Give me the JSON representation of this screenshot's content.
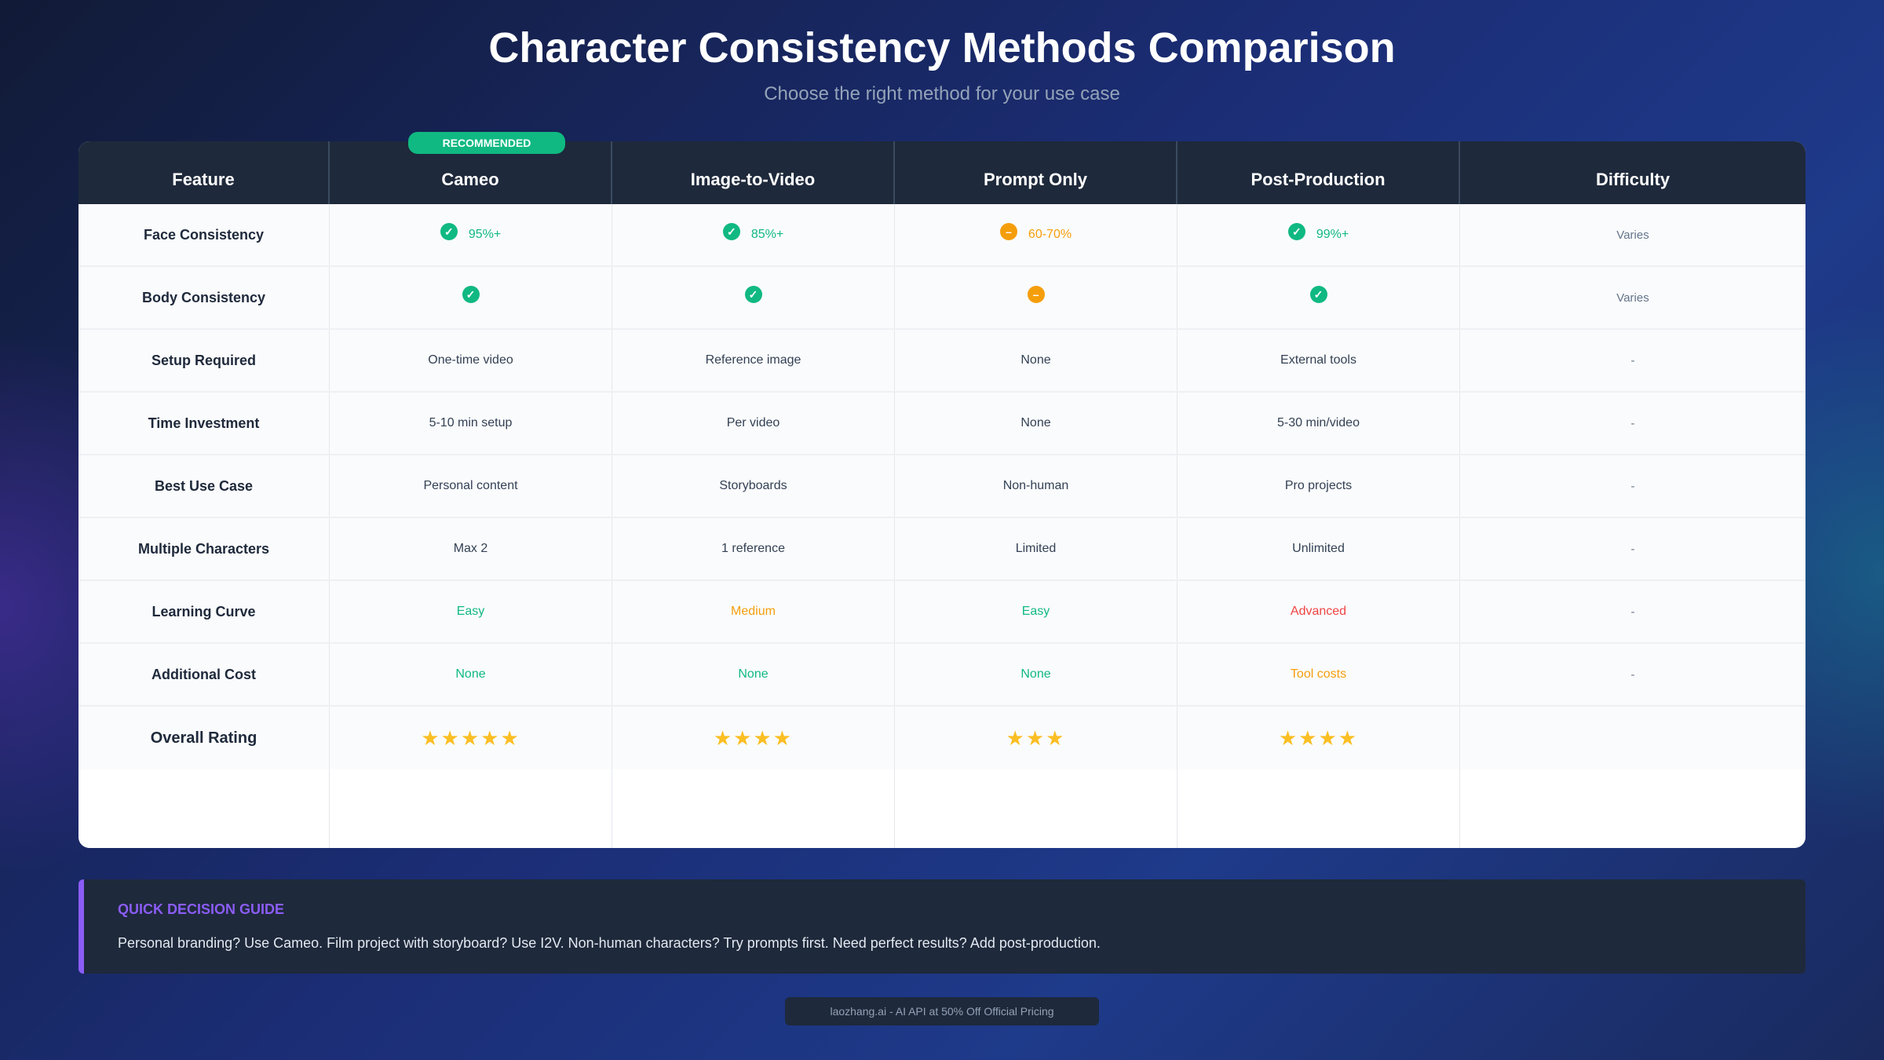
{
  "title": "Character Consistency Methods Comparison",
  "subtitle": "Choose the right method for your use case",
  "badge": "RECOMMENDED",
  "headers": [
    "Feature",
    "Cameo",
    "Image-to-Video",
    "Prompt Only",
    "Post-Production",
    "Difficulty"
  ],
  "rows": [
    {
      "feature": "Face Consistency",
      "cells": [
        {
          "icon": "check",
          "text": "95%+"
        },
        {
          "icon": "check",
          "text": "85%+"
        },
        {
          "icon": "partial",
          "text": "60-70%"
        },
        {
          "icon": "check",
          "text": "99%+"
        }
      ],
      "difficulty": "Varies"
    },
    {
      "feature": "Body Consistency",
      "cells": [
        {
          "icon": "check",
          "text": ""
        },
        {
          "icon": "check",
          "text": ""
        },
        {
          "icon": "partial",
          "text": ""
        },
        {
          "icon": "check",
          "text": ""
        }
      ],
      "difficulty": "Varies"
    },
    {
      "feature": "Setup Required",
      "cells": [
        "One-time video",
        "Reference image",
        "None",
        "External tools"
      ],
      "difficulty": "-"
    },
    {
      "feature": "Time Investment",
      "cells": [
        "5-10 min setup",
        "Per video",
        "None",
        "5-30 min/video"
      ],
      "difficulty": "-"
    },
    {
      "feature": "Best Use Case",
      "cells": [
        "Personal content",
        "Storyboards",
        "Non-human",
        "Pro projects"
      ],
      "difficulty": "-"
    },
    {
      "feature": "Multiple Characters",
      "cells": [
        "Max 2",
        "1 reference",
        "Limited",
        "Unlimited"
      ],
      "difficulty": "-"
    },
    {
      "feature": "Learning Curve",
      "cells": [
        "Easy",
        "Medium",
        "Easy",
        "Advanced"
      ],
      "colors": [
        "#10b981",
        "#f59e0b",
        "#10b981",
        "#ef4444"
      ],
      "difficulty": "-"
    },
    {
      "feature": "Additional Cost",
      "cells": [
        "None",
        "None",
        "None",
        "Tool costs"
      ],
      "colors": [
        "#10b981",
        "#10b981",
        "#10b981",
        "#f59e0b"
      ],
      "difficulty": "-"
    }
  ],
  "rating": {
    "label": "Overall Rating",
    "stars": [
      5,
      4,
      3,
      4
    ]
  },
  "guide": {
    "title": "QUICK DECISION GUIDE",
    "text": "Personal branding? Use Cameo. Film project with storyboard? Use I2V. Non-human characters? Try prompts first. Need perfect results? Add post-production."
  },
  "footer": "laozhang.ai - AI API at 50% Off Official Pricing"
}
